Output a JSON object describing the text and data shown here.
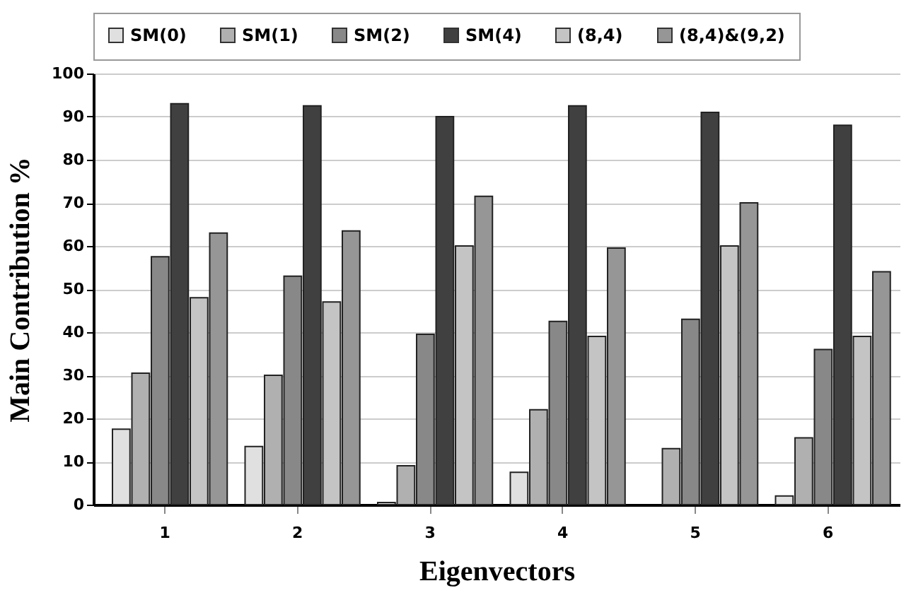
{
  "chart_data": {
    "type": "bar",
    "xlabel": "Eigenvectors",
    "ylabel": "Main Contribution %",
    "categories": [
      "1",
      "2",
      "3",
      "4",
      "5",
      "6"
    ],
    "series": [
      {
        "name": "SM(0)",
        "color": "#e0e0e0",
        "values": [
          17.5,
          13.5,
          0.5,
          7.5,
          null,
          2
        ]
      },
      {
        "name": "SM(1)",
        "color": "#b0b0b0",
        "values": [
          30.5,
          30,
          9,
          22,
          13,
          15.5
        ]
      },
      {
        "name": "SM(2)",
        "color": "#888888",
        "values": [
          57.5,
          53,
          39.5,
          42.5,
          43,
          36
        ]
      },
      {
        "name": "SM(4)",
        "color": "#404040",
        "values": [
          93,
          92.5,
          90,
          92.5,
          91,
          88
        ]
      },
      {
        "name": "(8,4)",
        "color": "#c4c4c4",
        "values": [
          48,
          47,
          60,
          39,
          60,
          39
        ]
      },
      {
        "name": "(8,4)&(9,2)",
        "color": "#969696",
        "values": [
          63,
          63.5,
          71.5,
          59.5,
          70,
          54
        ]
      }
    ],
    "ylim": [
      0,
      100
    ],
    "yticks": [
      0,
      10,
      20,
      30,
      40,
      50,
      60,
      70,
      80,
      90,
      100
    ],
    "grid": "y",
    "legend": "top"
  }
}
